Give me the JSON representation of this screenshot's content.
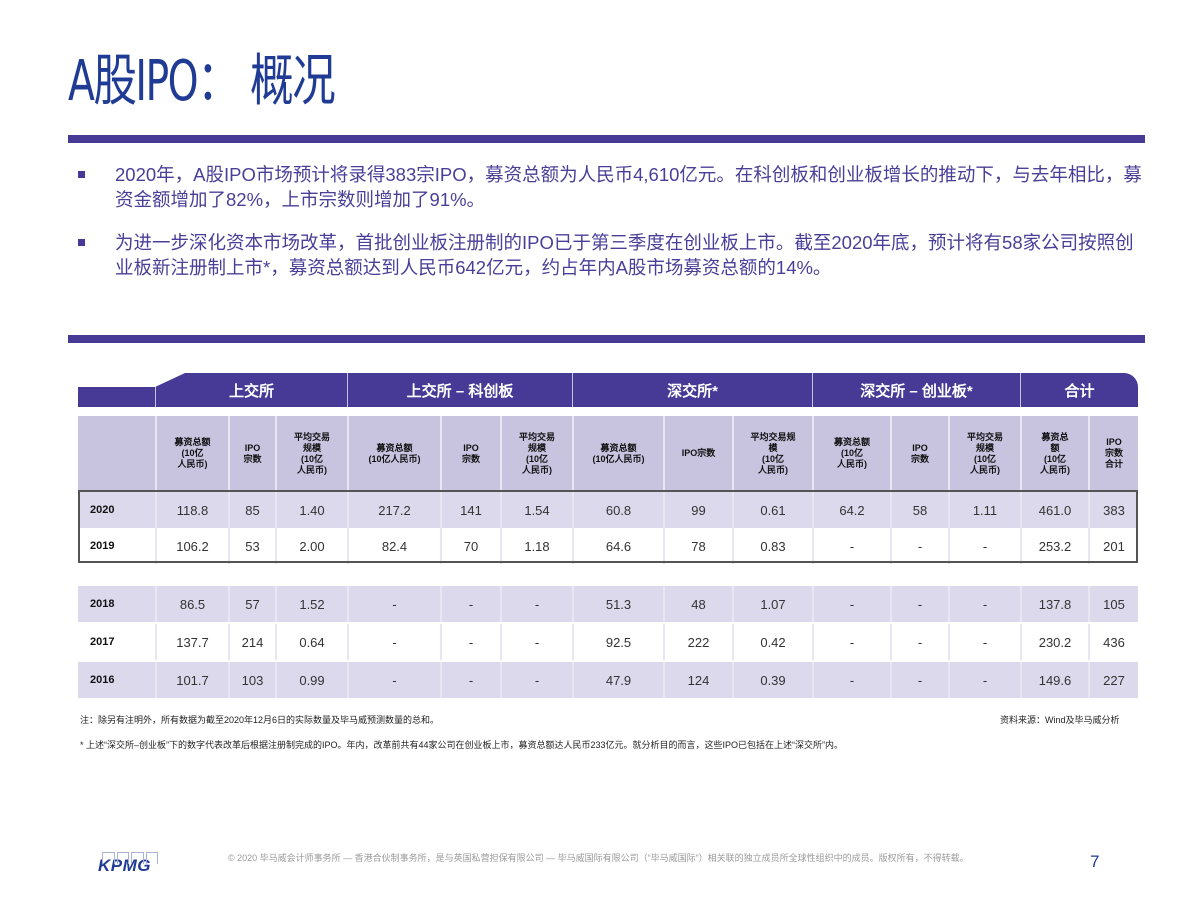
{
  "title": "A股IPO： 概况",
  "bullets": [
    "2020年，A股IPO市场预计将录得383宗IPO，募资总额为人民币4,610亿元。在科创板和创业板增长的推动下，与去年相比，募资金额增加了82%，上市宗数则增加了91%。",
    "为进一步深化资本市场改革，首批创业板注册制的IPO已于第三季度在创业板上市。截至2020年底，预计将有58家公司按照创业板新注册制上市*，募资总额达到人民币642亿元，约占年内A股市场募资总额的14%。"
  ],
  "table": {
    "groups": [
      "上交所",
      "上交所 – 科创板",
      "深交所*",
      "深交所 – 创业板*",
      "合计"
    ],
    "subheaders": [
      "募资总额\n(10亿\n人民币)",
      "IPO\n宗数",
      "平均交易\n规模\n(10亿\n人民币)",
      "募资总额\n(10亿人民币)",
      "IPO\n宗数",
      "平均交易\n规模\n(10亿\n人民币)",
      "募资总额\n(10亿人民币)",
      "IPO宗数",
      "平均交易规\n模\n(10亿\n人民币)",
      "募资总额\n(10亿\n人民币)",
      "IPO\n宗数",
      "平均交易\n规模\n(10亿\n人民币)",
      "募资总\n额\n(10亿\n人民币)",
      "IPO\n宗数\n合计"
    ],
    "rows": [
      {
        "year": "2020",
        "values": [
          "118.8",
          "85",
          "1.40",
          "217.2",
          "141",
          "1.54",
          "60.8",
          "99",
          "0.61",
          "64.2",
          "58",
          "1.11",
          "461.0",
          "383"
        ]
      },
      {
        "year": "2019",
        "values": [
          "106.2",
          "53",
          "2.00",
          "82.4",
          "70",
          "1.18",
          "64.6",
          "78",
          "0.83",
          "-",
          "-",
          "-",
          "253.2",
          "201"
        ]
      },
      {
        "year": "2018",
        "values": [
          "86.5",
          "57",
          "1.52",
          "-",
          "-",
          "-",
          "51.3",
          "48",
          "1.07",
          "-",
          "-",
          "-",
          "137.8",
          "105"
        ]
      },
      {
        "year": "2017",
        "values": [
          "137.7",
          "214",
          "0.64",
          "-",
          "-",
          "-",
          "92.5",
          "222",
          "0.42",
          "-",
          "-",
          "-",
          "230.2",
          "436"
        ]
      },
      {
        "year": "2016",
        "values": [
          "101.7",
          "103",
          "0.99",
          "-",
          "-",
          "-",
          "47.9",
          "124",
          "0.39",
          "-",
          "-",
          "-",
          "149.6",
          "227"
        ]
      }
    ]
  },
  "notes": {
    "note1": "注：除另有注明外，所有数据为截至2020年12月6日的实际数量及毕马威预测数量的总和。",
    "source": "资料来源：Wind及毕马威分析",
    "note2": "* 上述“深交所–创业板”下的数字代表改革后根据注册制完成的IPO。年内，改革前共有44家公司在创业板上市，募资总额达人民币233亿元。就分析目的而言，这些IPO已包括在上述“深交所”内。"
  },
  "footer": {
    "logo": "KPMG",
    "copyright": "© 2020 毕马威会计师事务所 — 香港合伙制事务所，是与英国私营担保有限公司 — 毕马威国际有限公司（“毕马威国际”）相关联的独立成员所全球性组织中的成员。版权所有，不得转载。",
    "page": "7"
  },
  "colors": {
    "accent": "#463a96",
    "title": "#1f3b94",
    "header_light": "#c8c4e0",
    "row_shade": "#dcd9ec"
  }
}
